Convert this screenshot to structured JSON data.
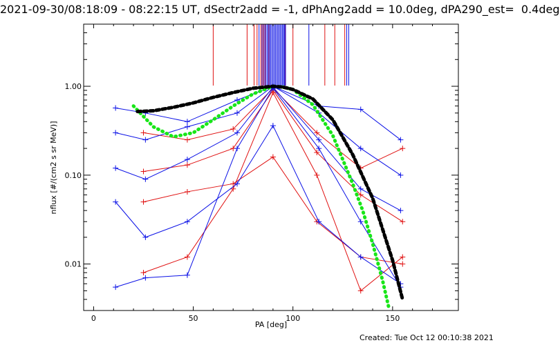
{
  "title": "2021-09-30/08:18:09 - 08:22:15 UT, dSectr2add = -1, dPhAng2add = 10.0deg, dPA290_est=  0.4deg",
  "footer": "Created: Tue Oct 12 00:10:38 2021",
  "colors": {
    "red": "#e01010",
    "blue": "#0a10e6",
    "green": "#18e618",
    "black": "#000000"
  },
  "chart_data": {
    "type": "line",
    "xlabel": "PA [deg]",
    "ylabel": "nflux [#/(cm2 s sr MeV)]",
    "xlim": [
      -5,
      183
    ],
    "ylim": [
      0.003,
      5
    ],
    "yscale": "log",
    "xticks": [
      0,
      50,
      100,
      150
    ],
    "xtick_labels": [
      "0",
      "50",
      "100",
      "150"
    ],
    "yticks": [
      0.01,
      0.1,
      1.0
    ],
    "ytick_labels": [
      "0.01",
      "0.10",
      "1.00"
    ],
    "markers": "+",
    "series": [
      {
        "color": "red",
        "x": [
          25,
          47,
          70,
          90,
          112,
          134,
          155
        ],
        "y": [
          0.11,
          0.13,
          0.2,
          0.9,
          0.18,
          0.06,
          0.03
        ]
      },
      {
        "color": "red",
        "x": [
          25,
          47,
          70,
          90,
          112,
          134,
          155
        ],
        "y": [
          0.05,
          0.065,
          0.08,
          0.16,
          0.03,
          0.012,
          0.01
        ]
      },
      {
        "color": "red",
        "x": [
          25,
          47,
          70,
          90,
          112,
          134,
          155
        ],
        "y": [
          0.3,
          0.25,
          0.33,
          0.95,
          0.3,
          0.12,
          0.2
        ]
      },
      {
        "color": "red",
        "x": [
          25,
          47,
          70,
          90,
          112,
          134,
          155
        ],
        "y": [
          0.008,
          0.012,
          0.07,
          0.85,
          0.1,
          0.005,
          0.012
        ]
      },
      {
        "color": "blue",
        "x": [
          11,
          26,
          47,
          72,
          90,
          113,
          134,
          154
        ],
        "y": [
          0.3,
          0.25,
          0.35,
          0.5,
          1.0,
          0.5,
          0.2,
          0.1
        ]
      },
      {
        "color": "blue",
        "x": [
          11,
          26,
          47,
          72,
          90,
          113,
          134,
          154
        ],
        "y": [
          0.05,
          0.02,
          0.03,
          0.08,
          0.36,
          0.03,
          0.012,
          0.006
        ]
      },
      {
        "color": "blue",
        "x": [
          11,
          26,
          47,
          72,
          90,
          113,
          134,
          154
        ],
        "y": [
          0.57,
          0.5,
          0.4,
          0.7,
          1.0,
          0.6,
          0.55,
          0.25
        ]
      },
      {
        "color": "blue",
        "x": [
          11,
          26,
          47,
          72,
          90,
          113,
          134,
          154
        ],
        "y": [
          0.0055,
          0.007,
          0.0075,
          0.2,
          0.95,
          0.2,
          0.03,
          0.0055
        ]
      },
      {
        "color": "blue",
        "x": [
          11,
          26,
          47,
          72,
          90,
          113,
          134,
          154
        ],
        "y": [
          0.12,
          0.09,
          0.15,
          0.3,
          0.98,
          0.25,
          0.07,
          0.04
        ]
      }
    ],
    "model_curves": [
      {
        "color": "green",
        "style": "thick-dotted",
        "x": [
          20,
          30,
          40,
          50,
          60,
          70,
          80,
          90,
          95,
          100,
          110,
          120,
          130,
          135,
          140,
          145,
          148
        ],
        "y": [
          0.6,
          0.35,
          0.27,
          0.3,
          0.42,
          0.6,
          0.82,
          1.0,
          0.98,
          0.92,
          0.62,
          0.28,
          0.08,
          0.04,
          0.017,
          0.0065,
          0.0033
        ]
      },
      {
        "color": "black",
        "style": "thick-dashed",
        "x": [
          22,
          30,
          40,
          50,
          60,
          70,
          80,
          90,
          95,
          100,
          110,
          120,
          130,
          140,
          150,
          155
        ],
        "y": [
          0.52,
          0.53,
          0.58,
          0.65,
          0.75,
          0.85,
          0.95,
          1.0,
          0.98,
          0.92,
          0.72,
          0.42,
          0.17,
          0.055,
          0.011,
          0.004
        ]
      }
    ],
    "top_ticks": [
      {
        "color": "red",
        "x": [
          60,
          77,
          80.5,
          82,
          84,
          85,
          86,
          88,
          96,
          100,
          116,
          121,
          126
        ]
      },
      {
        "color": "blue",
        "x": [
          83,
          84.5,
          85.5,
          86.3,
          87,
          87.6,
          88.2,
          88.8,
          89.4,
          90,
          90.6,
          91.2,
          91.8,
          92.4,
          93,
          93.6,
          94.2,
          94.8,
          95.3,
          95.8,
          96.3,
          108,
          127,
          128
        ]
      }
    ]
  }
}
